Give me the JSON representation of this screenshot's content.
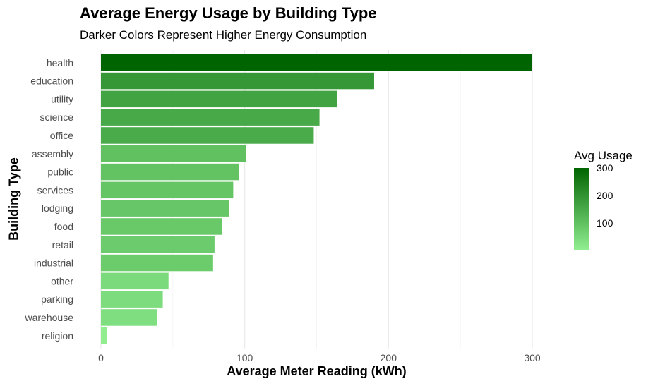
{
  "chart_data": {
    "type": "bar",
    "orientation": "horizontal",
    "title": "Average Energy Usage by Building Type",
    "subtitle": "Darker Colors Represent Higher Energy Consumption",
    "xlabel": "Average Meter Reading (kWh)",
    "ylabel": "Building Type",
    "xlim": [
      0,
      300
    ],
    "xticks": [
      0,
      100,
      200,
      300
    ],
    "grid": true,
    "categories": [
      "health",
      "education",
      "utility",
      "science",
      "office",
      "assembly",
      "public",
      "services",
      "lodging",
      "food",
      "retail",
      "industrial",
      "other",
      "parking",
      "warehouse",
      "religion"
    ],
    "values": [
      300,
      190,
      164,
      152,
      148,
      101,
      96,
      92,
      89,
      84,
      79,
      78,
      47,
      43,
      39,
      4
    ],
    "legend": {
      "title": "Avg Usage",
      "placement": "right",
      "ticks": [
        300,
        200,
        100
      ],
      "color_low": "#90ee90",
      "color_high": "#006400",
      "range": [
        4,
        300
      ]
    }
  }
}
